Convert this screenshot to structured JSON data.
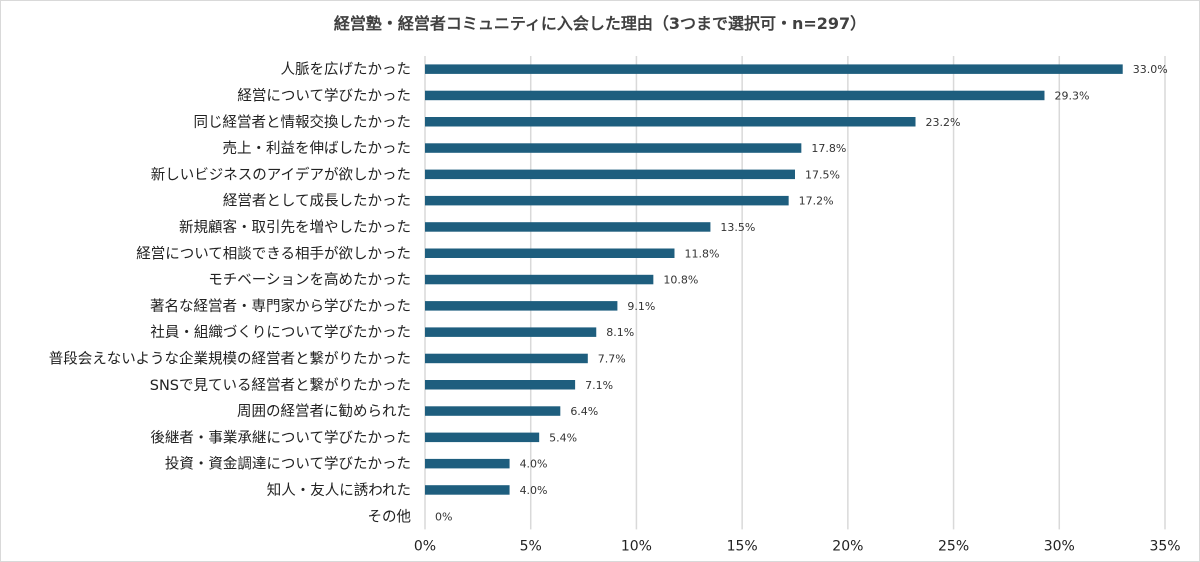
{
  "chart_data": {
    "type": "bar",
    "orientation": "horizontal",
    "title": "経営塾・経営者コミュニティに入会した理由（3つまで選択可・n=297）",
    "categories": [
      "人脈を広げたかった",
      "経営について学びたかった",
      "同じ経営者と情報交換したかった",
      "売上・利益を伸ばしたかった",
      "新しいビジネスのアイデアが欲しかった",
      "経営者として成長したかった",
      "新規顧客・取引先を増やしたかった",
      "経営について相談できる相手が欲しかった",
      "モチベーションを高めたかった",
      "著名な経営者・専門家から学びたかった",
      "社員・組織づくりについて学びたかった",
      "普段会えないような企業規模の経営者と繋がりたかった",
      "SNSで見ている経営者と繋がりたかった",
      "周囲の経営者に勧められた",
      "後継者・事業承継について学びたかった",
      "投資・資金調達について学びたかった",
      "知人・友人に誘われた",
      "その他"
    ],
    "values": [
      33.0,
      29.3,
      23.2,
      17.8,
      17.5,
      17.2,
      13.5,
      11.8,
      10.8,
      9.1,
      8.1,
      7.7,
      7.1,
      6.4,
      5.4,
      4.0,
      4.0,
      0
    ],
    "value_labels": [
      "33.0%",
      "29.3%",
      "23.2%",
      "17.8%",
      "17.5%",
      "17.2%",
      "13.5%",
      "11.8%",
      "10.8%",
      "9.1%",
      "8.1%",
      "7.7%",
      "7.1%",
      "6.4%",
      "5.4%",
      "4.0%",
      "4.0%",
      "0%"
    ],
    "xlim": [
      0,
      35
    ],
    "x_ticks": [
      0,
      5,
      10,
      15,
      20,
      25,
      30,
      35
    ],
    "x_tick_labels": [
      "0%",
      "5%",
      "10%",
      "15%",
      "20%",
      "25%",
      "30%",
      "35%"
    ],
    "grid": "vertical",
    "bar_color": "#1e5e7e",
    "grid_color": "#d9d9d9"
  }
}
